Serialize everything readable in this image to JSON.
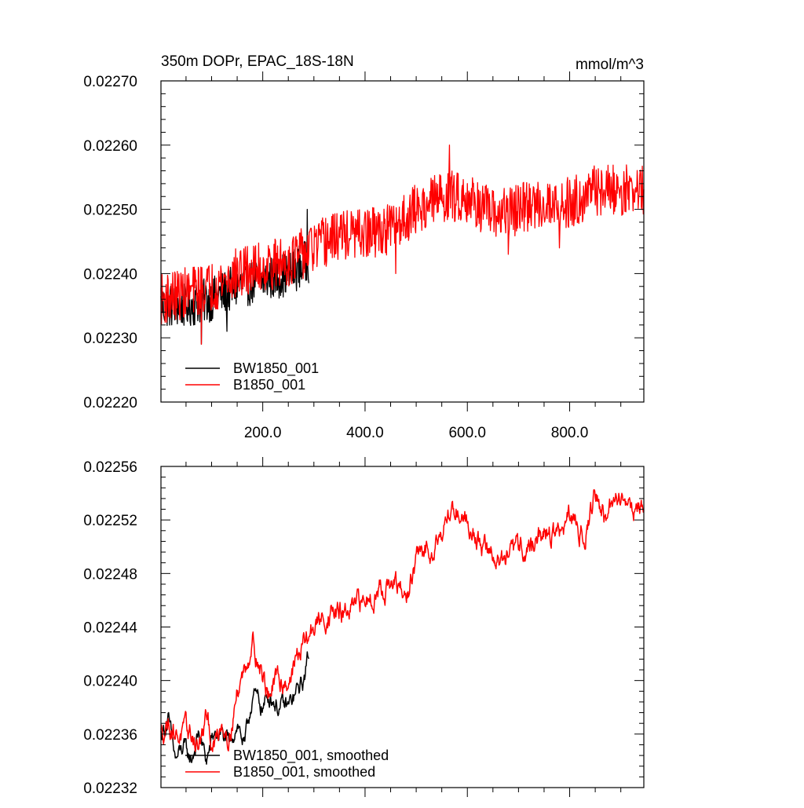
{
  "chart_data": [
    {
      "type": "line",
      "title": "350m DOPr, EPAC_18S-18N",
      "units": "mmol/m^3",
      "xlim": [
        1,
        945
      ],
      "ylim": [
        0.0222,
        0.0227
      ],
      "yticks": [
        0.0222,
        0.0223,
        0.0224,
        0.0225,
        0.0226,
        0.0227
      ],
      "ytick_labels": [
        "0.02220",
        "0.02230",
        "0.02240",
        "0.02250",
        "0.02260",
        "0.02270"
      ],
      "xticks": [
        200,
        400,
        600,
        800
      ],
      "xtick_labels": [
        "200.0",
        "400.0",
        "600.0",
        "800.0"
      ],
      "legend": [
        "BW1850_001",
        "B1850_001"
      ],
      "legend_position": "bottom-left",
      "series": [
        {
          "name": "BW1850_001",
          "color": "#000000",
          "x_end": 290,
          "anchors": [
            [
              1,
              0.02235
            ],
            [
              50,
              0.02235
            ],
            [
              100,
              0.02236
            ],
            [
              150,
              0.02238
            ],
            [
              200,
              0.02239
            ],
            [
              250,
              0.0224
            ],
            [
              290,
              0.02242
            ]
          ],
          "noise": 3.5e-05,
          "spikes": [
            [
              80,
              0.02229
            ],
            [
              130,
              0.02231
            ],
            [
              287,
              0.0225
            ]
          ]
        },
        {
          "name": "B1850_001",
          "color": "#ff0000",
          "x_end": 945,
          "anchors": [
            [
              1,
              0.02236
            ],
            [
              50,
              0.02237
            ],
            [
              100,
              0.02238
            ],
            [
              150,
              0.0224
            ],
            [
              200,
              0.02241
            ],
            [
              250,
              0.02242
            ],
            [
              300,
              0.02244
            ],
            [
              350,
              0.02246
            ],
            [
              400,
              0.02246
            ],
            [
              450,
              0.02247
            ],
            [
              500,
              0.0225
            ],
            [
              550,
              0.02252
            ],
            [
              600,
              0.02252
            ],
            [
              650,
              0.02249
            ],
            [
              700,
              0.0225
            ],
            [
              750,
              0.02251
            ],
            [
              800,
              0.02251
            ],
            [
              850,
              0.02253
            ],
            [
              900,
              0.02253
            ],
            [
              945,
              0.02253
            ]
          ],
          "noise": 4e-05,
          "spikes": [
            [
              80,
              0.02229
            ],
            [
              460,
              0.0224
            ],
            [
              565,
              0.0226
            ],
            [
              680,
              0.02243
            ],
            [
              780,
              0.02244
            ]
          ]
        }
      ]
    },
    {
      "type": "line",
      "xlim": [
        1,
        945
      ],
      "ylim": [
        0.02232,
        0.02256
      ],
      "yticks": [
        0.02232,
        0.02236,
        0.0224,
        0.02244,
        0.02248,
        0.02252,
        0.02256
      ],
      "ytick_labels": [
        "0.02232",
        "0.02236",
        "0.02240",
        "0.02244",
        "0.02248",
        "0.02252",
        "0.02256"
      ],
      "xticks": [
        200,
        400,
        600,
        800
      ],
      "legend": [
        "BW1850_001, smoothed",
        "B1850_001, smoothed"
      ],
      "legend_position": "bottom-left",
      "series": [
        {
          "name": "BW1850_001, smoothed",
          "color": "#000000",
          "x_end": 290,
          "anchors": [
            [
              1,
              0.02236
            ],
            [
              15,
              0.02237
            ],
            [
              30,
              0.02234
            ],
            [
              45,
              0.02235
            ],
            [
              60,
              0.02234
            ],
            [
              75,
              0.02236
            ],
            [
              90,
              0.02234
            ],
            [
              105,
              0.02236
            ],
            [
              120,
              0.02236
            ],
            [
              135,
              0.02235
            ],
            [
              150,
              0.02237
            ],
            [
              165,
              0.02235
            ],
            [
              180,
              0.02239
            ],
            [
              200,
              0.02238
            ],
            [
              215,
              0.02239
            ],
            [
              230,
              0.02238
            ],
            [
              250,
              0.02238
            ],
            [
              265,
              0.02239
            ],
            [
              280,
              0.0224
            ],
            [
              290,
              0.02242
            ]
          ],
          "noise": 5e-06,
          "spikes": []
        },
        {
          "name": "B1850_001, smoothed",
          "color": "#ff0000",
          "x_end": 945,
          "anchors": [
            [
              1,
              0.02236
            ],
            [
              15,
              0.02237
            ],
            [
              30,
              0.02236
            ],
            [
              45,
              0.02236
            ],
            [
              60,
              0.02236
            ],
            [
              75,
              0.02235
            ],
            [
              90,
              0.02237
            ],
            [
              105,
              0.02235
            ],
            [
              120,
              0.02237
            ],
            [
              135,
              0.02236
            ],
            [
              150,
              0.02239
            ],
            [
              165,
              0.02241
            ],
            [
              180,
              0.02243
            ],
            [
              195,
              0.02241
            ],
            [
              210,
              0.02239
            ],
            [
              230,
              0.0224
            ],
            [
              250,
              0.0224
            ],
            [
              270,
              0.02242
            ],
            [
              285,
              0.02243
            ],
            [
              300,
              0.02244
            ],
            [
              330,
              0.02245
            ],
            [
              370,
              0.02245
            ],
            [
              400,
              0.02246
            ],
            [
              430,
              0.02247
            ],
            [
              460,
              0.02247
            ],
            [
              480,
              0.02246
            ],
            [
              500,
              0.02249
            ],
            [
              530,
              0.0225
            ],
            [
              560,
              0.02252
            ],
            [
              575,
              0.02253
            ],
            [
              600,
              0.02252
            ],
            [
              630,
              0.0225
            ],
            [
              660,
              0.02249
            ],
            [
              680,
              0.02249
            ],
            [
              700,
              0.0225
            ],
            [
              720,
              0.0225
            ],
            [
              750,
              0.02251
            ],
            [
              780,
              0.02251
            ],
            [
              800,
              0.02252
            ],
            [
              830,
              0.02251
            ],
            [
              850,
              0.02254
            ],
            [
              870,
              0.02252
            ],
            [
              900,
              0.02254
            ],
            [
              920,
              0.02253
            ],
            [
              945,
              0.02253
            ]
          ],
          "noise": 6e-06,
          "spikes": []
        }
      ]
    }
  ]
}
